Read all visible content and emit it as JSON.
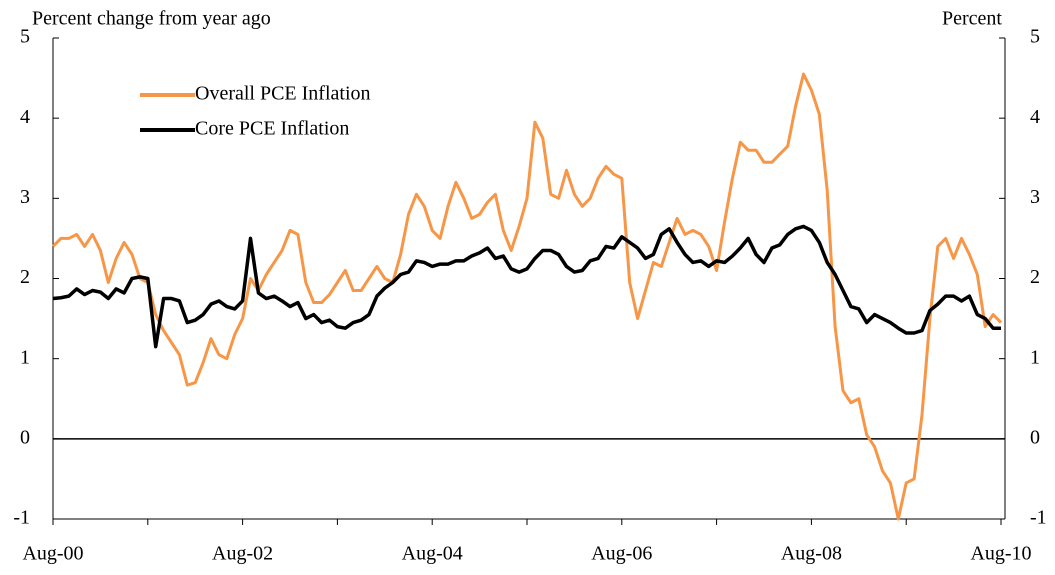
{
  "chart_data": {
    "type": "line",
    "y_label": "Percent change from year ago",
    "y2_label": "Percent",
    "categories": [
      "Aug-00",
      null,
      null,
      null,
      null,
      null,
      null,
      null,
      null,
      null,
      null,
      null,
      null,
      null,
      null,
      null,
      null,
      null,
      null,
      null,
      null,
      null,
      null,
      null,
      "Aug-02",
      null,
      null,
      null,
      null,
      null,
      null,
      null,
      null,
      null,
      null,
      null,
      null,
      null,
      null,
      null,
      null,
      null,
      null,
      null,
      null,
      null,
      null,
      null,
      "Aug-04",
      null,
      null,
      null,
      null,
      null,
      null,
      null,
      null,
      null,
      null,
      null,
      null,
      null,
      null,
      null,
      null,
      null,
      null,
      null,
      null,
      null,
      null,
      null,
      "Aug-06",
      null,
      null,
      null,
      null,
      null,
      null,
      null,
      null,
      null,
      null,
      null,
      null,
      null,
      null,
      null,
      null,
      null,
      null,
      null,
      null,
      null,
      null,
      null,
      "Aug-08",
      null,
      null,
      null,
      null,
      null,
      null,
      null,
      null,
      null,
      null,
      null,
      null,
      null,
      null,
      null,
      null,
      null,
      null,
      null,
      null,
      null,
      null,
      null,
      "Aug-10"
    ],
    "series": [
      {
        "name": "Overall PCE Inflation",
        "color": "#f79646",
        "values": [
          2.4,
          2.5,
          2.5,
          2.55,
          2.4,
          2.55,
          2.35,
          1.95,
          2.25,
          2.45,
          2.3,
          2.0,
          1.95,
          1.55,
          1.35,
          1.2,
          1.05,
          0.67,
          0.7,
          0.95,
          1.25,
          1.05,
          1.0,
          1.3,
          1.5,
          2.0,
          1.85,
          2.05,
          2.2,
          2.35,
          2.6,
          2.55,
          1.95,
          1.7,
          1.7,
          1.8,
          1.95,
          2.1,
          1.85,
          1.85,
          2.0,
          2.15,
          2.0,
          1.95,
          2.3,
          2.8,
          3.05,
          2.9,
          2.6,
          2.5,
          2.9,
          3.2,
          3.0,
          2.75,
          2.8,
          2.95,
          3.05,
          2.6,
          2.35,
          2.65,
          3.0,
          3.95,
          3.75,
          3.05,
          3.0,
          3.35,
          3.05,
          2.9,
          3.0,
          3.25,
          3.4,
          3.3,
          3.25,
          1.95,
          1.5,
          1.85,
          2.2,
          2.15,
          2.45,
          2.75,
          2.55,
          2.6,
          2.55,
          2.4,
          2.1,
          2.7,
          3.25,
          3.7,
          3.6,
          3.6,
          3.45,
          3.45,
          3.55,
          3.65,
          4.15,
          4.55,
          4.35,
          4.05,
          3.1,
          1.4,
          0.6,
          0.45,
          0.5,
          0.05,
          -0.1,
          -0.4,
          -0.55,
          -1.0,
          -0.55,
          -0.5,
          0.3,
          1.5,
          2.4,
          2.5,
          2.25,
          2.5,
          2.3,
          2.05,
          1.4,
          1.55,
          1.45
        ]
      },
      {
        "name": "Core PCE Inflation",
        "color": "#000000",
        "values": [
          1.75,
          1.76,
          1.78,
          1.87,
          1.8,
          1.85,
          1.83,
          1.75,
          1.87,
          1.82,
          2.0,
          2.02,
          2.0,
          1.15,
          1.75,
          1.75,
          1.72,
          1.45,
          1.48,
          1.55,
          1.68,
          1.72,
          1.65,
          1.62,
          1.72,
          2.5,
          1.82,
          1.75,
          1.78,
          1.72,
          1.65,
          1.7,
          1.5,
          1.55,
          1.45,
          1.48,
          1.4,
          1.38,
          1.45,
          1.48,
          1.55,
          1.78,
          1.88,
          1.95,
          2.05,
          2.08,
          2.22,
          2.2,
          2.15,
          2.18,
          2.18,
          2.22,
          2.22,
          2.28,
          2.32,
          2.38,
          2.25,
          2.28,
          2.12,
          2.08,
          2.12,
          2.25,
          2.35,
          2.35,
          2.3,
          2.15,
          2.08,
          2.1,
          2.22,
          2.25,
          2.4,
          2.38,
          2.52,
          2.45,
          2.38,
          2.25,
          2.3,
          2.55,
          2.62,
          2.45,
          2.3,
          2.2,
          2.22,
          2.15,
          2.22,
          2.2,
          2.28,
          2.38,
          2.5,
          2.3,
          2.2,
          2.38,
          2.42,
          2.55,
          2.62,
          2.65,
          2.6,
          2.45,
          2.2,
          2.05,
          1.85,
          1.65,
          1.62,
          1.45,
          1.55,
          1.5,
          1.45,
          1.38,
          1.32,
          1.32,
          1.35,
          1.6,
          1.68,
          1.78,
          1.78,
          1.72,
          1.78,
          1.55,
          1.5,
          1.38,
          1.38
        ]
      }
    ],
    "ylim": [
      -1,
      5
    ],
    "yticks": [
      -1,
      0,
      1,
      2,
      3,
      4,
      5
    ],
    "y2lim": [
      -1,
      5
    ],
    "y2ticks": [
      -1,
      0,
      1,
      2,
      3,
      4,
      5
    ],
    "legend": "upper left"
  }
}
